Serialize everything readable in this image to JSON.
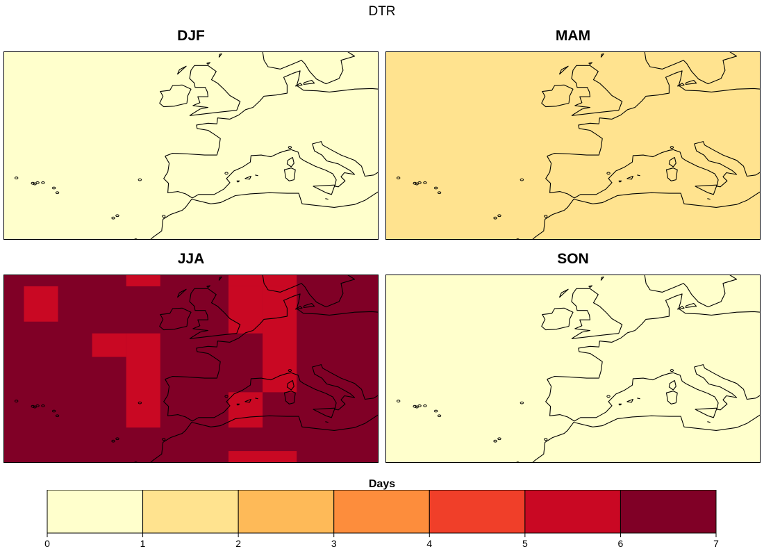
{
  "title": "DTR",
  "panels": [
    {
      "label": "DJF",
      "base_class": 0,
      "cells": []
    },
    {
      "label": "MAM",
      "base_class": 1,
      "cells": []
    },
    {
      "label": "JJA",
      "base_class": 6,
      "cells": [
        {
          "lon0": -30,
          "lon1": -25,
          "lat0": 53,
          "lat1": 59,
          "class": 5
        },
        {
          "lon0": -15,
          "lon1": -10,
          "lat0": 59,
          "lat1": 61,
          "class": 5
        },
        {
          "lon0": -20,
          "lon1": -15,
          "lat0": 47,
          "lat1": 51,
          "class": 5
        },
        {
          "lon0": -15,
          "lon1": -10,
          "lat0": 35,
          "lat1": 51,
          "class": 5
        },
        {
          "lon0": 0,
          "lon1": 10,
          "lat0": 59,
          "lat1": 61,
          "class": 5
        },
        {
          "lon0": 0,
          "lon1": 5,
          "lat0": 51,
          "lat1": 59,
          "class": 5
        },
        {
          "lon0": 5,
          "lon1": 10,
          "lat0": 41,
          "lat1": 59,
          "class": 5
        },
        {
          "lon0": 0,
          "lon1": 5,
          "lat0": 35,
          "lat1": 41,
          "class": 5
        },
        {
          "lon0": 0,
          "lon1": 10,
          "lat0": 29,
          "lat1": 31,
          "class": 5
        }
      ]
    }
  ],
  "panel_titles": {
    "djf": "DJF",
    "mam": "MAM",
    "jja": "JJA",
    "son": "SON"
  },
  "map_extent": {
    "lon_min": -33,
    "lon_max": 22,
    "lat_min": 29,
    "lat_max": 61
  },
  "colorbar": {
    "title": "Days",
    "breaks": [
      0,
      1,
      2,
      3,
      4,
      5,
      6,
      7
    ],
    "tick_labels": [
      "0",
      "1",
      "2",
      "3",
      "4",
      "5",
      "6",
      "7"
    ],
    "colors": [
      "#FFFFCC",
      "#FFE38F",
      "#FEBA58",
      "#FD8D3C",
      "#F03F29",
      "#C90823",
      "#800026"
    ]
  }
}
